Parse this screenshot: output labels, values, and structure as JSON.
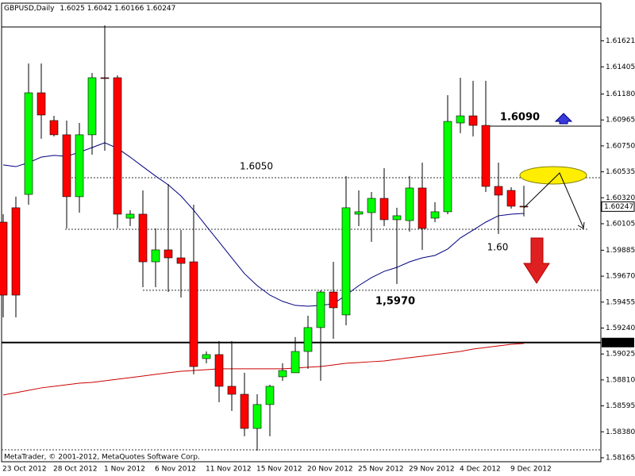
{
  "chart_data": {
    "type": "candlestick",
    "title": "GBPUSD,Daily",
    "footer": "MetaTrader, © 2001-2012, MetaQuotes Software Corp.",
    "categories": [
      "23 Oct 2012",
      null,
      null,
      null,
      "28 Oct 2012",
      null,
      null,
      null,
      "1 Nov 2012",
      null,
      null,
      null,
      "6 Nov 2012",
      null,
      null,
      null,
      "11 Nov 2012",
      null,
      null,
      null,
      "15 Nov 2012",
      null,
      null,
      null,
      "20 Nov 2012",
      null,
      null,
      null,
      "25 Nov 2012",
      null,
      null,
      null,
      "29 Nov 2012",
      null,
      null,
      null,
      "4 Dec 2012",
      null,
      null,
      null,
      "9 Dec 2012",
      null
    ],
    "open": [
      1.60118,
      1.60237,
      1.60348,
      1.6119,
      1.6096,
      1.60842,
      1.60329,
      1.60842,
      1.61315,
      1.61315,
      1.60151,
      1.60184,
      1.59789,
      1.59888,
      1.59822,
      1.59789,
      1.58987,
      1.5902,
      1.58757,
      1.58691,
      1.58408,
      1.58606,
      1.58836,
      1.58869,
      1.59046,
      1.59244,
      1.59539,
      1.59349,
      1.60184,
      1.60197,
      1.60315,
      1.60138,
      1.60131,
      1.60401,
      1.60151,
      1.60204,
      1.6094,
      1.60999,
      1.6092,
      1.60414,
      1.60381,
      1.6025
    ],
    "high": [
      1.60184,
      1.60329,
      1.61433,
      1.61433,
      1.60999,
      1.6096,
      1.6094,
      1.61354,
      1.61749,
      1.61335,
      1.60217,
      1.60381,
      1.60066,
      1.60434,
      1.60052,
      1.60263,
      1.59046,
      1.59132,
      1.59132,
      1.58869,
      1.58691,
      1.5877,
      1.58948,
      1.59165,
      1.59342,
      1.59553,
      1.59789,
      1.605,
      1.60381,
      1.60368,
      1.60565,
      1.60237,
      1.605,
      1.60611,
      1.60283,
      1.6117,
      1.61315,
      1.61289,
      1.61289,
      1.60611,
      1.60407,
      1.6042
    ],
    "low": [
      1.59329,
      1.59329,
      1.60263,
      1.60809,
      1.60828,
      1.60066,
      1.60197,
      1.60677,
      1.6071,
      1.60066,
      1.60085,
      1.59579,
      1.59579,
      1.59539,
      1.59493,
      1.58856,
      1.58948,
      1.58625,
      1.58553,
      1.58343,
      1.58224,
      1.58343,
      1.58803,
      1.58869,
      1.58902,
      1.58803,
      1.59151,
      1.59263,
      1.60085,
      1.59954,
      1.60085,
      1.59605,
      1.60039,
      1.59888,
      1.60118,
      1.60184,
      1.60855,
      1.60828,
      1.60368,
      1.6002,
      1.6023,
      1.60166
    ],
    "close": [
      1.59513,
      1.59513,
      1.6119,
      1.61006,
      1.60842,
      1.60329,
      1.60842,
      1.61315,
      1.6131,
      1.60184,
      1.60184,
      1.59789,
      1.59888,
      1.59822,
      1.59776,
      1.58921,
      1.5902,
      1.58757,
      1.58691,
      1.58408,
      1.58606,
      1.58757,
      1.58888,
      1.59046,
      1.59244,
      1.59539,
      1.59408,
      1.60237,
      1.60204,
      1.60315,
      1.60138,
      1.60171,
      1.60401,
      1.60066,
      1.60204,
      1.60953,
      1.60999,
      1.6092,
      1.60414,
      1.60342,
      1.6025,
      1.60247
    ],
    "up_color": "#00ff00",
    "down_color": "#ff0000",
    "lines": [
      {
        "color": "#000080",
        "values": [
          1.60592,
          1.60578,
          1.60611,
          1.60657,
          1.60671,
          1.60664,
          1.60697,
          1.60736,
          1.60776,
          1.6073,
          1.60657,
          1.60578,
          1.605,
          1.60427,
          1.60335,
          1.60217,
          1.60085,
          1.59954,
          1.59822,
          1.59691,
          1.59592,
          1.59513,
          1.59461,
          1.59428,
          1.59421,
          1.59428,
          1.59441,
          1.59513,
          1.59592,
          1.59658,
          1.5971,
          1.59743,
          1.59789,
          1.59822,
          1.59842,
          1.59895,
          1.59987,
          1.60052,
          1.60118,
          1.60171,
          1.60184,
          1.6019
        ]
      },
      {
        "color": "#cc0000",
        "values": [
          1.58685,
          1.58704,
          1.58724,
          1.58744,
          1.58757,
          1.5877,
          1.58783,
          1.5879,
          1.58803,
          1.58816,
          1.58829,
          1.58842,
          1.58856,
          1.58869,
          1.58882,
          1.58888,
          1.58895,
          1.58902,
          1.58902,
          1.58902,
          1.58902,
          1.58902,
          1.58902,
          1.58908,
          1.58915,
          1.58921,
          1.58934,
          1.58948,
          1.58954,
          1.58961,
          1.58967,
          1.58981,
          1.58994,
          1.59007,
          1.5902,
          1.59033,
          1.59046,
          1.59066,
          1.59079,
          1.59092,
          1.59105,
          1.59112
        ]
      }
    ],
    "hlines": [
      {
        "value": 1.61736,
        "style": "solid"
      },
      {
        "value": 1.5912,
        "label": "1.59120",
        "style": "thick"
      },
      {
        "value": 1.60486,
        "style": "dotted"
      },
      {
        "value": 1.60059,
        "style": "dotted"
      },
      {
        "value": 1.59553,
        "style": "dotted"
      },
      {
        "value": 1.60914,
        "style": "solid"
      },
      {
        "value": 1.58231,
        "style": "dotted"
      }
    ],
    "annotations": [
      "1.6050",
      "1.6090",
      "1,5970",
      "1.60"
    ],
    "ylim": [
      1.58132,
      1.61933
    ],
    "yticks": [
      1.61621,
      1.61405,
      {
        "value": 1.6118,
        "label": "1.61180"
      },
      1.60965,
      {
        "value": 1.6075,
        "label": "1.60750"
      },
      1.60535,
      {
        "value": 1.6032,
        "label": "1.60320"
      },
      1.60105,
      1.59885,
      {
        "value": 1.5967,
        "label": "1.59670"
      },
      1.59455,
      {
        "value": 1.5924,
        "label": "1.59240"
      },
      1.59025,
      {
        "value": 1.5881,
        "label": "1.58810"
      },
      1.58595,
      {
        "value": 1.5838,
        "label": "1.58380"
      },
      1.58165
    ],
    "grid": false
  }
}
